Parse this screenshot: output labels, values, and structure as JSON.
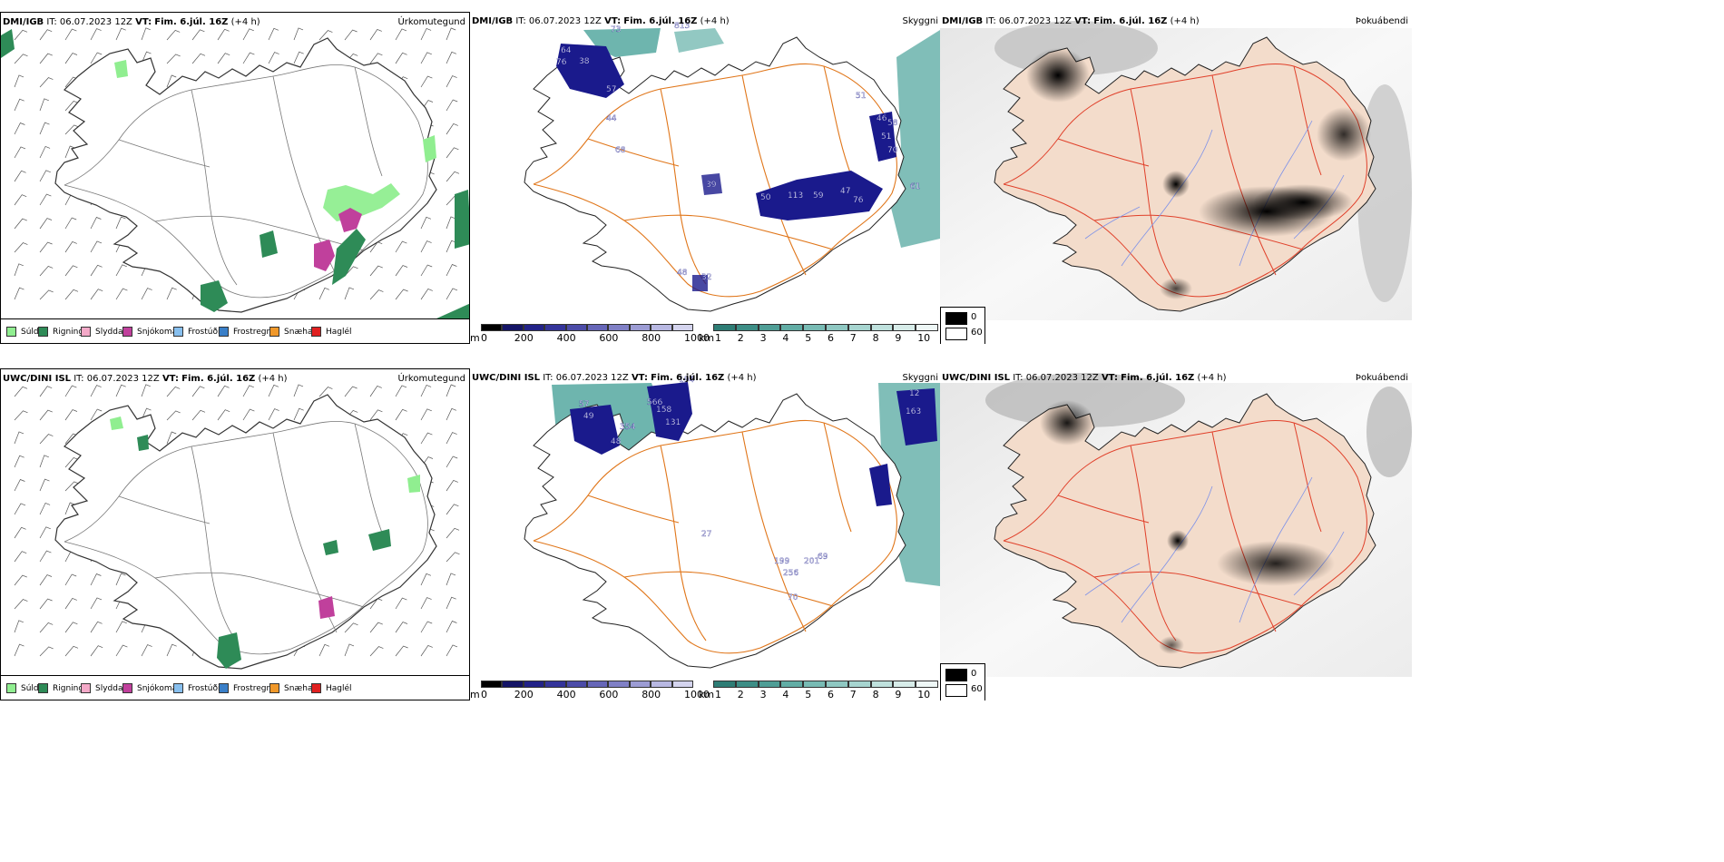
{
  "colors": {
    "rain": "#2e8b57",
    "drizzle": "#90ee90",
    "sleet": "#f4a9c8",
    "snow": "#c0409c",
    "freezing_drizzle": "#87bfee",
    "freezing_rain": "#3a7fc8",
    "snow_hail": "#f0982a",
    "hail": "#e02020",
    "cloud_base": "#1a1a8c",
    "visibility": "#4aa39a",
    "roads": "#e0761a",
    "land": "#f3dccb"
  },
  "rows": [
    {
      "model": "DMI/IGB",
      "it_label": "IT:",
      "it_value": "06.07.2023 12Z",
      "vt_label": "VT:",
      "vt_value": "Fim. 6.júl. 16Z",
      "offset": "(+4 h)",
      "titles": {
        "precip": "Úrkomutegund",
        "ceiling": "Skyggni",
        "fog": "Þokuábendi"
      },
      "cloud_values": [
        "64",
        "76",
        "38",
        "57",
        "73",
        "813",
        "68",
        "44",
        "39",
        "51",
        "46",
        "58",
        "51",
        "70",
        "50",
        "113",
        "59",
        "47",
        "76",
        "61",
        "48",
        "32"
      ],
      "precip_blobs": "dmi"
    },
    {
      "model": "UWC/DINI ISL",
      "it_label": "IT:",
      "it_value": "06.07.2023 12Z",
      "vt_label": "VT:",
      "vt_value": "Fim. 6.júl. 16Z",
      "offset": "(+4 h)",
      "titles": {
        "precip": "Úrkomutegund",
        "ceiling": "Skyggni",
        "fog": "Þokuábendi"
      },
      "cloud_values": [
        "57",
        "49",
        "566",
        "194",
        "158",
        "131",
        "354",
        "48",
        "12",
        "163",
        "27",
        "199",
        "201",
        "69",
        "256",
        "70"
      ],
      "precip_blobs": "uwc"
    }
  ],
  "precip_legend": [
    "Súld",
    "Rigning",
    "Slydda",
    "Snjókoma",
    "Frostúði",
    "Frostregn",
    "Snæhagl",
    "Haglél"
  ],
  "ceiling_bar": {
    "unit": "m",
    "ticks": [
      "0",
      "200",
      "400",
      "600",
      "800",
      "1000"
    ]
  },
  "visibility_bar": {
    "unit": "km",
    "ticks": [
      "1",
      "2",
      "3",
      "4",
      "5",
      "6",
      "7",
      "8",
      "9",
      "10"
    ]
  },
  "fog_key": {
    "black": "0",
    "white": "60"
  }
}
